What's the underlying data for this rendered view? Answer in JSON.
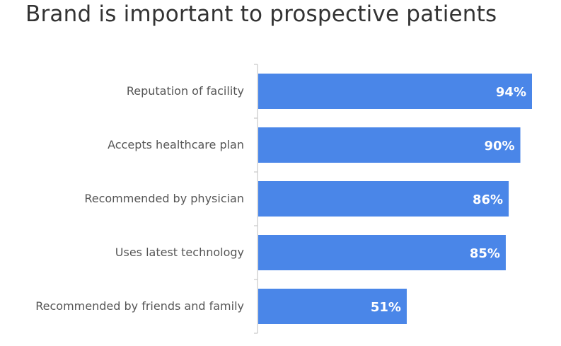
{
  "chart_data": {
    "type": "bar",
    "orientation": "horizontal",
    "title": "Brand is important to prospective patients",
    "categories": [
      "Reputation of facility",
      "Accepts healthcare plan",
      "Recommended by physician",
      "Uses latest technology",
      "Recommended by friends and family"
    ],
    "values": [
      94,
      90,
      86,
      85,
      51
    ],
    "value_labels": [
      "94%",
      "90%",
      "86%",
      "85%",
      "51%"
    ],
    "unit": "%",
    "xlim": [
      0,
      100
    ],
    "grid": false,
    "bar_color": "#4a86e8"
  }
}
